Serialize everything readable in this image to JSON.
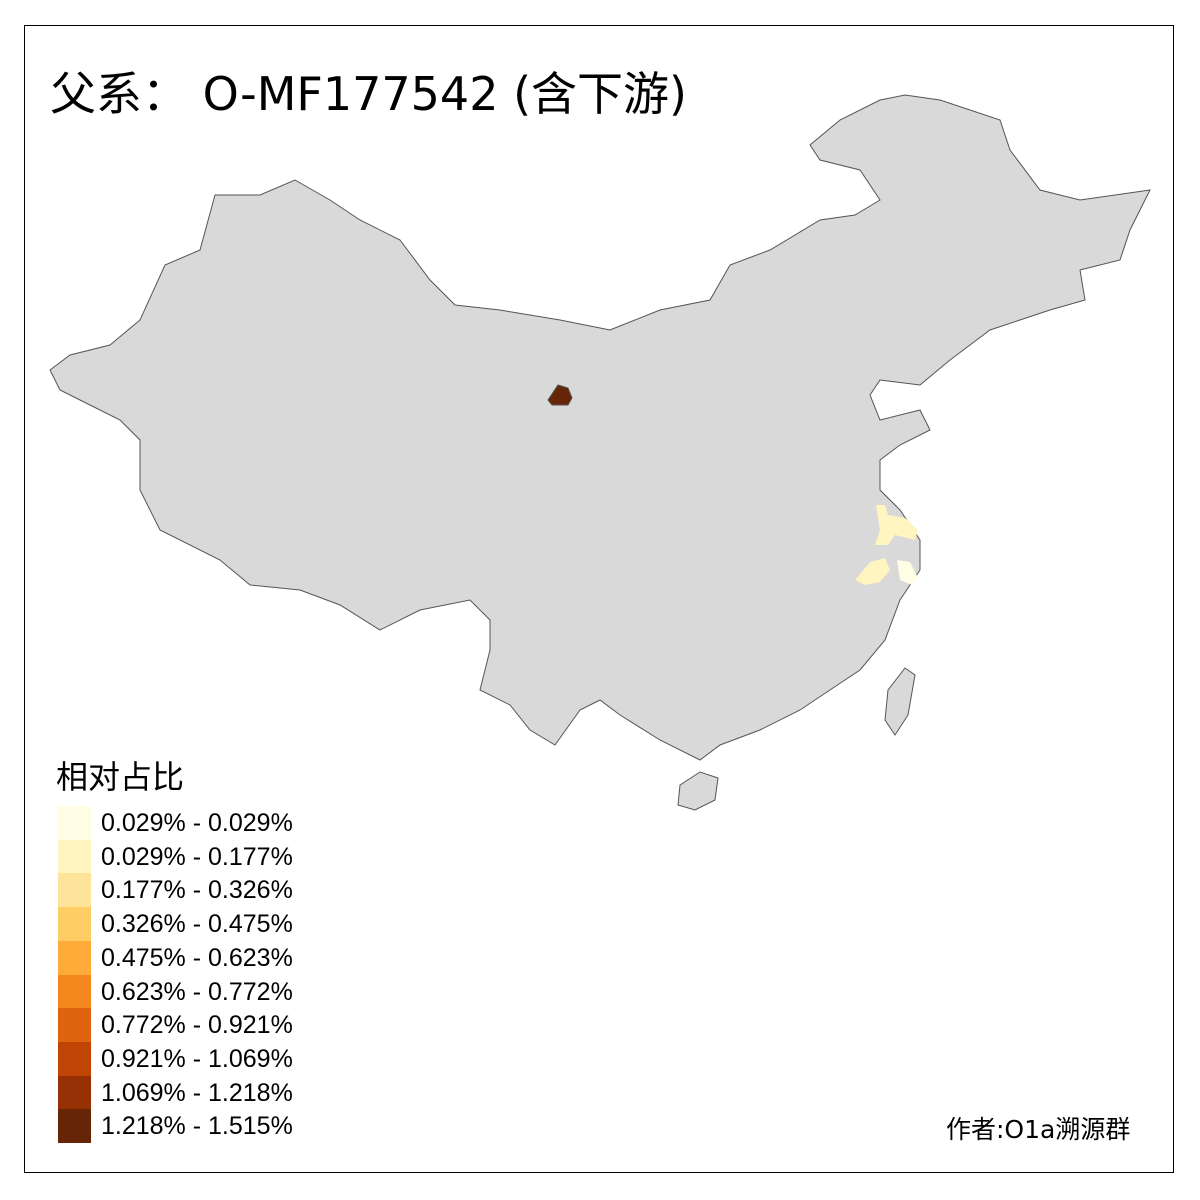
{
  "title": "父系： O-MF177542 (含下游)",
  "legend": {
    "title": "相对占比",
    "items": [
      {
        "label": "0.029% - 0.029%",
        "color": "#FFFDE4"
      },
      {
        "label": "0.029% - 0.177%",
        "color": "#FFF5C0"
      },
      {
        "label": "0.177% - 0.326%",
        "color": "#FEE49A"
      },
      {
        "label": "0.326% - 0.475%",
        "color": "#FECE65"
      },
      {
        "label": "0.475% - 0.623%",
        "color": "#FEAB3A"
      },
      {
        "label": "0.623% - 0.772%",
        "color": "#F4861E"
      },
      {
        "label": "0.772% - 0.921%",
        "color": "#E0640F"
      },
      {
        "label": "0.921% - 1.069%",
        "color": "#C04504"
      },
      {
        "label": "1.069% - 1.218%",
        "color": "#983006"
      },
      {
        "label": "1.218% - 1.515%",
        "color": "#662506"
      }
    ]
  },
  "map": {
    "no_data_color": "#D9D9D9",
    "border_color": "#555555"
  },
  "credit": "作者:O1a溯源群"
}
